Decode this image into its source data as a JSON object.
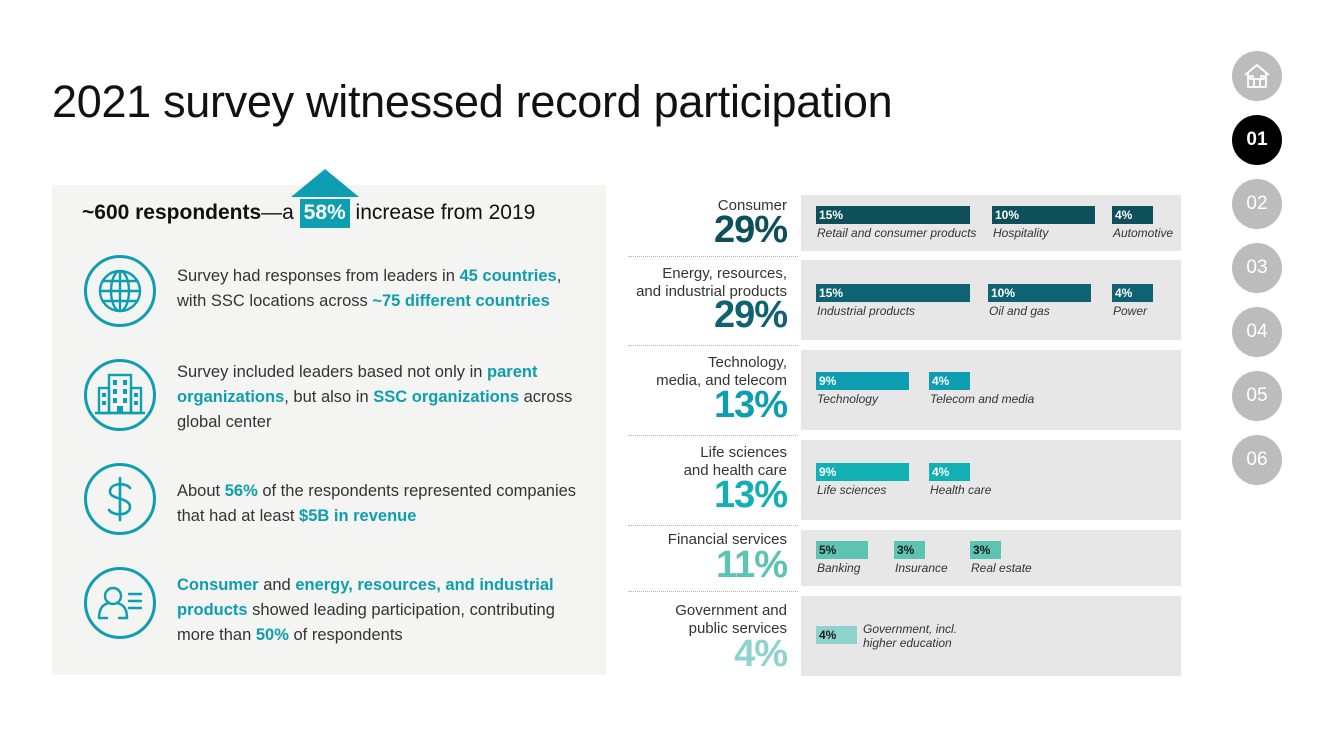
{
  "title": "2021 survey witnessed record participation",
  "headline": {
    "bold": "~600 respondents",
    "mid": "—a ",
    "pct": "58%",
    "tail": " increase from 2019"
  },
  "bullets": [
    {
      "icon": "globe-icon",
      "parts": [
        {
          "t": "Survey had responses from leaders in ",
          "h": false
        },
        {
          "t": "45 countries",
          "h": true
        },
        {
          "t": ", with SSC locations across ",
          "h": false
        },
        {
          "t": "~75 different countries",
          "h": true
        }
      ]
    },
    {
      "icon": "building-icon",
      "parts": [
        {
          "t": "Survey included leaders based not only in ",
          "h": false
        },
        {
          "t": "parent organizations",
          "h": true
        },
        {
          "t": ", but also in ",
          "h": false
        },
        {
          "t": "SSC organizations",
          "h": true
        },
        {
          "t": " across global center",
          "h": false
        }
      ]
    },
    {
      "icon": "dollar-icon",
      "parts": [
        {
          "t": "About ",
          "h": false
        },
        {
          "t": "56%",
          "h": true
        },
        {
          "t": " of the respondents represented companies that had at least ",
          "h": false
        },
        {
          "t": "$5B in revenue",
          "h": true
        }
      ]
    },
    {
      "icon": "person-list-icon",
      "parts": [
        {
          "t": "Consumer",
          "h": true
        },
        {
          "t": " and ",
          "h": false
        },
        {
          "t": "energy, resources, and industrial products",
          "h": true
        },
        {
          "t": " showed leading participation, contributing more than ",
          "h": false
        },
        {
          "t": "50%",
          "h": true
        },
        {
          "t": " of respondents",
          "h": false
        }
      ]
    }
  ],
  "sectors": [
    {
      "label": [
        "Consumer"
      ],
      "pct": "29%",
      "color": "#0d4f5b",
      "items": [
        {
          "value": "15%",
          "label": "Retail and consumer products"
        },
        {
          "value": "10%",
          "label": "Hospitality"
        },
        {
          "value": "4%",
          "label": "Automotive"
        }
      ]
    },
    {
      "label": [
        "Energy, resources,",
        "and industrial products"
      ],
      "pct": "29%",
      "color": "#0e6271",
      "items": [
        {
          "value": "15%",
          "label": "Industrial products"
        },
        {
          "value": "10%",
          "label": "Oil and gas"
        },
        {
          "value": "4%",
          "label": "Power"
        }
      ]
    },
    {
      "label": [
        "Technology,",
        "media, and telecom"
      ],
      "pct": "13%",
      "color": "#0d9eb1",
      "items": [
        {
          "value": "9%",
          "label": "Technology"
        },
        {
          "value": "4%",
          "label": "Telecom and media"
        }
      ]
    },
    {
      "label": [
        "Life sciences",
        "and health care"
      ],
      "pct": "13%",
      "color": "#12b0b5",
      "items": [
        {
          "value": "9%",
          "label": "Life sciences"
        },
        {
          "value": "4%",
          "label": "Health care"
        }
      ]
    },
    {
      "label": [
        "Financial services"
      ],
      "pct": "11%",
      "color": "#5dc3b2",
      "items": [
        {
          "value": "5%",
          "label": "Banking"
        },
        {
          "value": "3%",
          "label": "Insurance"
        },
        {
          "value": "3%",
          "label": "Real estate"
        }
      ]
    },
    {
      "label": [
        "Government and",
        "public services"
      ],
      "pct": "4%",
      "color": "#8fd3cf",
      "items": [
        {
          "value": "4%",
          "label": "Government, incl. higher education"
        }
      ]
    }
  ],
  "nav": [
    "home-icon",
    "01",
    "02",
    "03",
    "04",
    "05",
    "06"
  ],
  "nav_active": "01",
  "colors": {
    "accent": "#0d9eb1",
    "panel": "#f4f4f2",
    "row_box": "#e6e7e6",
    "nav_inactive": "#bcbcbc"
  }
}
